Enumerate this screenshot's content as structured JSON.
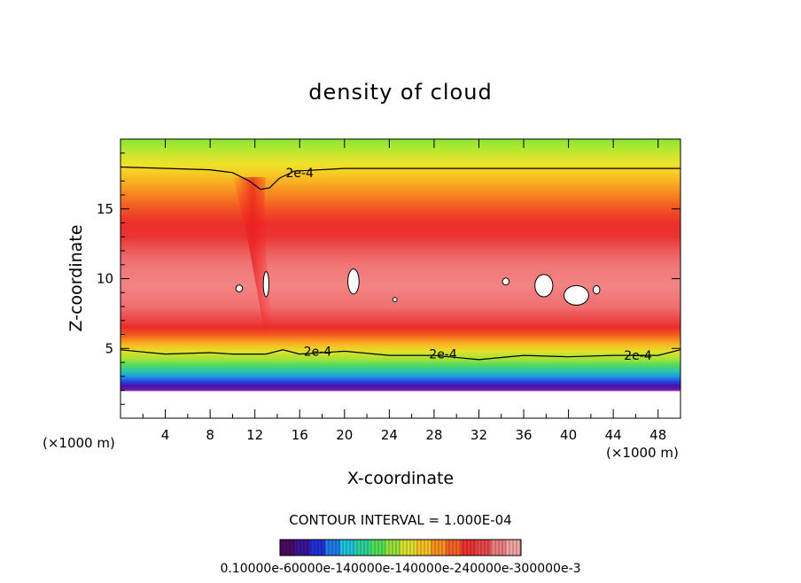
{
  "chart_data": {
    "type": "heatmap",
    "title": "density of cloud",
    "xlabel": "X-coordinate",
    "ylabel": "Z-coordinate",
    "x_unit_left": "(×1000 m)",
    "x_unit_right": "(×1000 m)",
    "xlim": [
      0,
      50
    ],
    "ylim": [
      0,
      20
    ],
    "x_ticks": [
      4,
      8,
      12,
      16,
      20,
      24,
      28,
      32,
      36,
      40,
      44,
      48
    ],
    "y_ticks": [
      5,
      10,
      15
    ],
    "contour_interval_text": "CONTOUR INTERVAL = 1.000E-04",
    "contour_labels": [
      {
        "text": "2e-4",
        "x": 16.0,
        "y": 17.6
      },
      {
        "text": "2e-4",
        "x": 17.6,
        "y": 4.8
      },
      {
        "text": "2e-4",
        "x": 28.8,
        "y": 4.6
      },
      {
        "text": "2e-4",
        "x": 46.2,
        "y": 4.5
      }
    ],
    "upper_contour": [
      [
        0,
        18
      ],
      [
        8,
        17.8
      ],
      [
        10,
        17.6
      ],
      [
        11.5,
        17.0
      ],
      [
        12.5,
        16.4
      ],
      [
        13.3,
        16.5
      ],
      [
        14.2,
        17.2
      ],
      [
        15.5,
        17.7
      ],
      [
        20,
        17.9
      ],
      [
        30,
        17.9
      ],
      [
        40,
        17.9
      ],
      [
        50,
        17.9
      ]
    ],
    "lower_contour": [
      [
        0,
        4.9
      ],
      [
        4,
        4.6
      ],
      [
        8,
        4.7
      ],
      [
        10,
        4.6
      ],
      [
        13,
        4.6
      ],
      [
        14.5,
        4.9
      ],
      [
        16,
        4.6
      ],
      [
        20,
        4.8
      ],
      [
        24,
        4.5
      ],
      [
        28,
        4.5
      ],
      [
        32,
        4.2
      ],
      [
        36,
        4.5
      ],
      [
        40,
        4.4
      ],
      [
        44,
        4.5
      ],
      [
        48,
        4.5
      ],
      [
        50,
        4.9
      ]
    ],
    "colorbar": {
      "label_text": "0.10000e-60000e-140000e-140000e-240000e-300000e-3",
      "colors": [
        "#4b0a66",
        "#3a1499",
        "#2030d8",
        "#1f7be6",
        "#22c2dc",
        "#2dd49a",
        "#53e057",
        "#9ae23a",
        "#dde230",
        "#f6c323",
        "#fa9222",
        "#f46226",
        "#ec3330",
        "#e8484c",
        "#ee7e82",
        "#f3a6a6"
      ]
    },
    "colormap": [
      {
        "z": 19.8,
        "color": "#93e734"
      },
      {
        "z": 19.0,
        "color": "#c4e72e"
      },
      {
        "z": 18.2,
        "color": "#efe22b"
      },
      {
        "z": 17.4,
        "color": "#f8c523"
      },
      {
        "z": 16.6,
        "color": "#f9a021"
      },
      {
        "z": 15.8,
        "color": "#f67a22"
      },
      {
        "z": 15.0,
        "color": "#f15424"
      },
      {
        "z": 14.0,
        "color": "#ec2f2b"
      },
      {
        "z": 13.0,
        "color": "#ea3434"
      },
      {
        "z": 12.0,
        "color": "#ee5a5a"
      },
      {
        "z": 11.0,
        "color": "#f07676"
      },
      {
        "z": 9.5,
        "color": "#f38484"
      },
      {
        "z": 8.0,
        "color": "#f07070"
      },
      {
        "z": 7.2,
        "color": "#ec4c4c"
      },
      {
        "z": 6.5,
        "color": "#ea2c2c"
      },
      {
        "z": 6.0,
        "color": "#f4561f"
      },
      {
        "z": 5.6,
        "color": "#f88d20"
      },
      {
        "z": 5.2,
        "color": "#f6c022"
      },
      {
        "z": 4.8,
        "color": "#e3e027"
      },
      {
        "z": 4.2,
        "color": "#9ee23a"
      },
      {
        "z": 3.8,
        "color": "#52d95e"
      },
      {
        "z": 3.4,
        "color": "#2bc8a6"
      },
      {
        "z": 3.0,
        "color": "#1f9be2"
      },
      {
        "z": 2.6,
        "color": "#2340dc"
      },
      {
        "z": 2.3,
        "color": "#4a12a8"
      },
      {
        "z": 2.0,
        "color": "#7a1aa6"
      },
      {
        "z": 1.9,
        "color": "#ffffff"
      },
      {
        "z": 0.0,
        "color": "#ffffff"
      }
    ],
    "white_patches": [
      {
        "x": 10.6,
        "y": 9.3,
        "rx": 0.3,
        "ry": 0.25
      },
      {
        "x": 13.0,
        "y": 9.6,
        "rx": 0.25,
        "ry": 0.9
      },
      {
        "x": 20.8,
        "y": 9.8,
        "rx": 0.5,
        "ry": 0.9
      },
      {
        "x": 24.5,
        "y": 8.5,
        "rx": 0.2,
        "ry": 0.15
      },
      {
        "x": 34.4,
        "y": 9.8,
        "rx": 0.3,
        "ry": 0.25
      },
      {
        "x": 37.8,
        "y": 9.5,
        "rx": 0.8,
        "ry": 0.8
      },
      {
        "x": 40.7,
        "y": 8.8,
        "rx": 1.1,
        "ry": 0.7
      },
      {
        "x": 42.5,
        "y": 9.2,
        "rx": 0.3,
        "ry": 0.3
      }
    ]
  }
}
